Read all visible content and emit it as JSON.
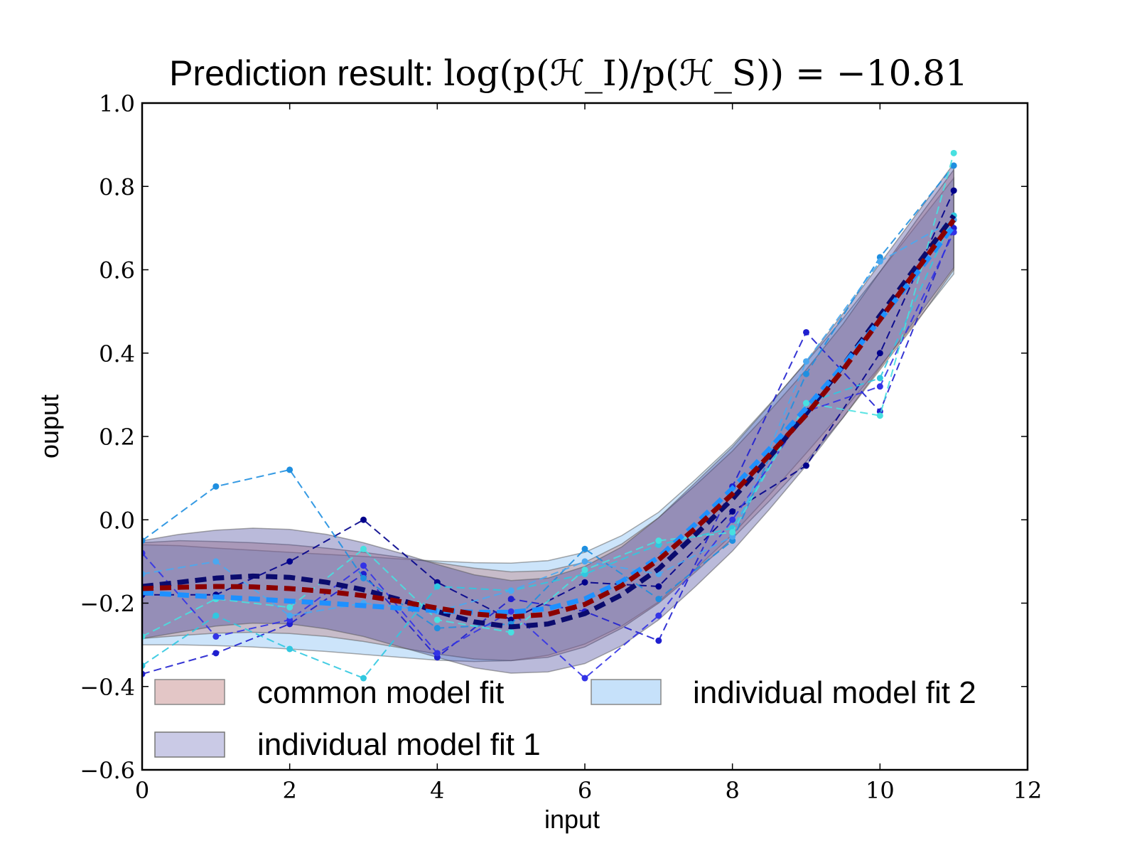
{
  "chart_data": {
    "type": "line",
    "title_prefix": "Prediction result: ",
    "title_math": "log(p(ℋ_I)/p(ℋ_S)) = −10.81",
    "title_value": -10.81,
    "xlabel": "input",
    "ylabel": "ouput",
    "xlim": [
      0,
      12
    ],
    "ylim": [
      -0.6,
      1.0
    ],
    "xticks": [
      0,
      2,
      4,
      6,
      8,
      10,
      12
    ],
    "yticks": [
      -0.6,
      -0.4,
      -0.2,
      0.0,
      0.2,
      0.4,
      0.6,
      0.8,
      1.0
    ],
    "xtick_labels": [
      "0",
      "2",
      "4",
      "6",
      "8",
      "10",
      "12"
    ],
    "ytick_labels": [
      "−0.6",
      "−0.4",
      "−0.2",
      "0.0",
      "0.2",
      "0.4",
      "0.6",
      "0.8",
      "1.0"
    ],
    "grid": false,
    "legend": {
      "placement": "lower-left",
      "entries": [
        {
          "label": "common model fit",
          "color": "#c08080"
        },
        {
          "label": "individual model fit 2",
          "color": "#8ec4f5"
        },
        {
          "label": "individual model fit 1",
          "color": "#8a8ac8"
        }
      ]
    },
    "colors": {
      "common_mean": "#8b0000",
      "common_band": "#c08080",
      "ind1_mean": "#0b0b6e",
      "ind1_band": "#3a3a96",
      "ind2_mean": "#1e90ff",
      "ind2_band": "#8ec4f5"
    },
    "fits": {
      "x": [
        0,
        0.5,
        1,
        1.5,
        2,
        2.5,
        3,
        3.5,
        4,
        4.5,
        5,
        5.5,
        6,
        6.5,
        7,
        7.5,
        8,
        8.5,
        9,
        9.5,
        10,
        10.5,
        11
      ],
      "common_mean": [
        -0.165,
        -0.162,
        -0.16,
        -0.161,
        -0.165,
        -0.172,
        -0.182,
        -0.196,
        -0.212,
        -0.226,
        -0.233,
        -0.227,
        -0.203,
        -0.158,
        -0.096,
        -0.02,
        0.062,
        0.155,
        0.252,
        0.36,
        0.48,
        0.6,
        0.72
      ],
      "common_lower": [
        -0.285,
        -0.278,
        -0.272,
        -0.27,
        -0.273,
        -0.28,
        -0.292,
        -0.307,
        -0.322,
        -0.334,
        -0.338,
        -0.33,
        -0.305,
        -0.26,
        -0.2,
        -0.125,
        -0.045,
        0.045,
        0.14,
        0.245,
        0.36,
        0.475,
        0.6
      ],
      "common_upper": [
        -0.055,
        -0.05,
        -0.052,
        -0.055,
        -0.06,
        -0.068,
        -0.078,
        -0.09,
        -0.103,
        -0.116,
        -0.125,
        -0.122,
        -0.102,
        -0.058,
        0.005,
        0.083,
        0.165,
        0.26,
        0.36,
        0.47,
        0.595,
        0.72,
        0.84
      ],
      "ind1_mean": [
        -0.16,
        -0.15,
        -0.14,
        -0.135,
        -0.138,
        -0.15,
        -0.168,
        -0.192,
        -0.22,
        -0.245,
        -0.257,
        -0.25,
        -0.225,
        -0.18,
        -0.118,
        -0.035,
        0.05,
        0.15,
        0.255,
        0.37,
        0.49,
        0.61,
        0.73
      ],
      "ind1_lower": [
        -0.285,
        -0.27,
        -0.255,
        -0.248,
        -0.25,
        -0.262,
        -0.28,
        -0.305,
        -0.33,
        -0.355,
        -0.368,
        -0.365,
        -0.345,
        -0.302,
        -0.24,
        -0.16,
        -0.075,
        0.025,
        0.13,
        0.245,
        0.365,
        0.485,
        0.605
      ],
      "ind1_upper": [
        -0.05,
        -0.035,
        -0.025,
        -0.02,
        -0.023,
        -0.035,
        -0.055,
        -0.08,
        -0.107,
        -0.132,
        -0.146,
        -0.14,
        -0.112,
        -0.065,
        0.005,
        0.09,
        0.175,
        0.275,
        0.38,
        0.495,
        0.615,
        0.735,
        0.855
      ],
      "ind2_mean": [
        -0.175,
        -0.18,
        -0.185,
        -0.19,
        -0.195,
        -0.2,
        -0.206,
        -0.212,
        -0.218,
        -0.222,
        -0.222,
        -0.213,
        -0.19,
        -0.148,
        -0.09,
        -0.01,
        0.075,
        0.17,
        0.268,
        0.37,
        0.48,
        0.592,
        0.705
      ],
      "ind2_lower": [
        -0.3,
        -0.3,
        -0.302,
        -0.305,
        -0.31,
        -0.316,
        -0.323,
        -0.33,
        -0.337,
        -0.34,
        -0.338,
        -0.325,
        -0.298,
        -0.255,
        -0.197,
        -0.118,
        -0.035,
        0.06,
        0.16,
        0.262,
        0.368,
        0.478,
        0.59
      ],
      "ind2_upper": [
        -0.06,
        -0.062,
        -0.068,
        -0.073,
        -0.078,
        -0.083,
        -0.088,
        -0.094,
        -0.099,
        -0.103,
        -0.104,
        -0.098,
        -0.078,
        -0.038,
        0.018,
        0.097,
        0.18,
        0.277,
        0.378,
        0.483,
        0.595,
        0.708,
        0.82
      ]
    },
    "replicates": {
      "x": [
        0,
        1,
        2,
        3,
        4,
        5,
        6,
        7,
        8,
        9,
        10,
        11
      ],
      "series": [
        {
          "color": "#00008b",
          "values": [
            -0.18,
            -0.18,
            -0.1,
            0.0,
            -0.15,
            -0.24,
            -0.15,
            -0.16,
            0.02,
            0.13,
            0.4,
            0.79
          ]
        },
        {
          "color": "#1f1fcf",
          "values": [
            -0.37,
            -0.32,
            -0.25,
            -0.13,
            -0.33,
            -0.19,
            -0.22,
            -0.29,
            0.08,
            0.45,
            0.26,
            0.7
          ]
        },
        {
          "color": "#1f8fe0",
          "values": [
            -0.05,
            0.08,
            0.12,
            -0.14,
            -0.26,
            -0.25,
            -0.07,
            -0.19,
            -0.05,
            0.35,
            0.63,
            0.85
          ]
        },
        {
          "color": "#30c8e0",
          "values": [
            -0.35,
            -0.23,
            -0.31,
            -0.38,
            -0.16,
            -0.17,
            -0.13,
            -0.06,
            -0.02,
            0.28,
            0.34,
            0.73
          ]
        },
        {
          "color": "#3333e6",
          "values": [
            -0.08,
            -0.28,
            -0.24,
            -0.11,
            -0.32,
            -0.22,
            -0.38,
            -0.23,
            0.0,
            0.26,
            0.32,
            0.69
          ]
        },
        {
          "color": "#4aa8f0",
          "values": [
            -0.13,
            -0.1,
            -0.23,
            -0.2,
            -0.22,
            -0.17,
            -0.1,
            -0.13,
            -0.04,
            0.38,
            0.62,
            0.72
          ]
        },
        {
          "color": "#48e0e0",
          "values": [
            -0.28,
            -0.19,
            -0.21,
            -0.07,
            -0.24,
            -0.27,
            -0.12,
            -0.05,
            -0.03,
            0.28,
            0.25,
            0.88
          ]
        }
      ]
    }
  }
}
